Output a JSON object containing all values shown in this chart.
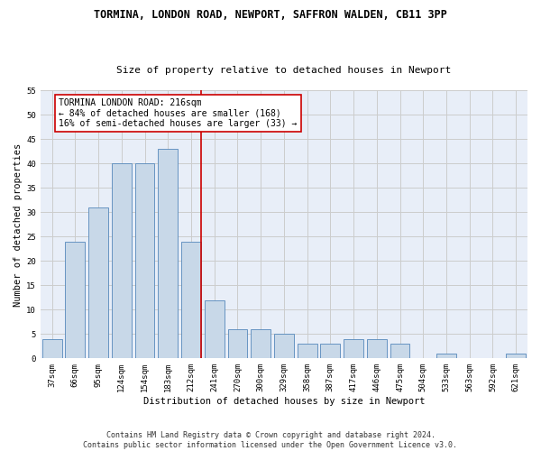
{
  "title": "TORMINA, LONDON ROAD, NEWPORT, SAFFRON WALDEN, CB11 3PP",
  "subtitle": "Size of property relative to detached houses in Newport",
  "xlabel": "Distribution of detached houses by size in Newport",
  "ylabel": "Number of detached properties",
  "categories": [
    "37sqm",
    "66sqm",
    "95sqm",
    "124sqm",
    "154sqm",
    "183sqm",
    "212sqm",
    "241sqm",
    "270sqm",
    "300sqm",
    "329sqm",
    "358sqm",
    "387sqm",
    "417sqm",
    "446sqm",
    "475sqm",
    "504sqm",
    "533sqm",
    "563sqm",
    "592sqm",
    "621sqm"
  ],
  "values": [
    4,
    24,
    31,
    40,
    40,
    43,
    24,
    12,
    6,
    6,
    5,
    3,
    3,
    4,
    4,
    3,
    0,
    1,
    0,
    0,
    1
  ],
  "bar_color": "#c8d8e8",
  "bar_edge_color": "#5588bb",
  "vline_x_index": 6,
  "vline_color": "#cc0000",
  "annotation_text": "TORMINA LONDON ROAD: 216sqm\n← 84% of detached houses are smaller (168)\n16% of semi-detached houses are larger (33) →",
  "annotation_box_color": "#ffffff",
  "annotation_box_edge": "#cc0000",
  "ylim": [
    0,
    55
  ],
  "yticks": [
    0,
    5,
    10,
    15,
    20,
    25,
    30,
    35,
    40,
    45,
    50,
    55
  ],
  "grid_color": "#cccccc",
  "background_color": "#e8eef8",
  "footer_text": "Contains HM Land Registry data © Crown copyright and database right 2024.\nContains public sector information licensed under the Open Government Licence v3.0.",
  "title_fontsize": 8.5,
  "subtitle_fontsize": 8,
  "axis_label_fontsize": 7.5,
  "tick_fontsize": 6.5,
  "annotation_fontsize": 7,
  "footer_fontsize": 6
}
